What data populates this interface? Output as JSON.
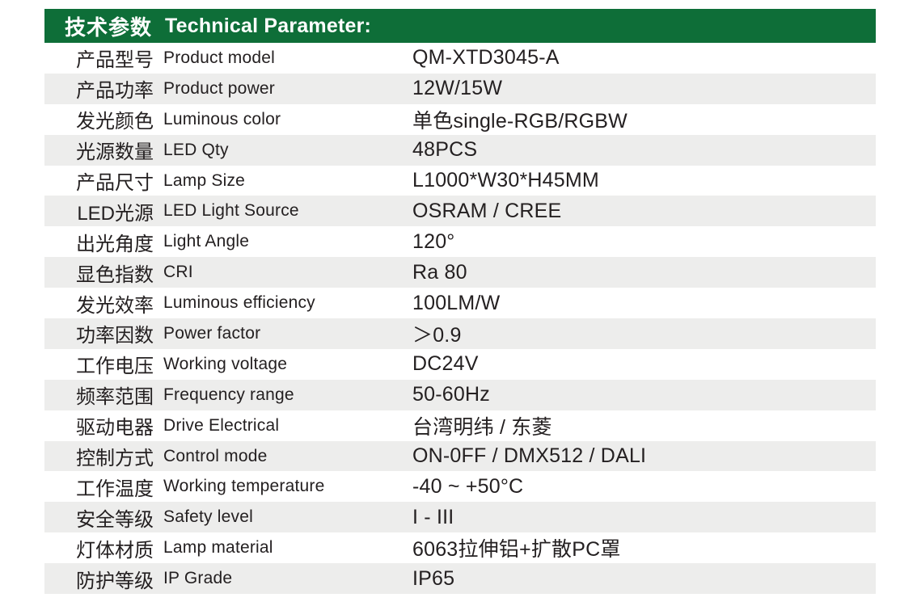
{
  "header": {
    "title_zh": "技术参数",
    "title_en": "Technical Parameter:"
  },
  "colors": {
    "header_bg": "#0e6e38",
    "header_text": "#ffffff",
    "stripe_bg": "#ededec",
    "body_bg": "#ffffff",
    "text": "#242021"
  },
  "table": {
    "columns": [
      "parameter_zh",
      "parameter_en",
      "value"
    ],
    "rows": [
      {
        "zh": "产品型号",
        "en": "Product model",
        "value": "QM-XTD3045-A"
      },
      {
        "zh": "产品功率",
        "en": "Product power",
        "value": "12W/15W"
      },
      {
        "zh": "发光颜色",
        "en": "Luminous color",
        "value": "单色single-RGB/RGBW"
      },
      {
        "zh": "光源数量",
        "en": "LED Qty",
        "value": "48PCS"
      },
      {
        "zh": "产品尺寸",
        "en": "Lamp Size",
        "value": "L1000*W30*H45MM"
      },
      {
        "zh": "LED光源",
        "en": "LED Light Source",
        "value": "OSRAM / CREE"
      },
      {
        "zh": "出光角度",
        "en": "Light Angle",
        "value": "120°"
      },
      {
        "zh": "显色指数",
        "en": "CRI",
        "value": "Ra 80"
      },
      {
        "zh": "发光效率",
        "en": "Luminous efficiency",
        "value": "100LM/W"
      },
      {
        "zh": "功率因数",
        "en": "Power factor",
        "value": "＞0.9"
      },
      {
        "zh": "工作电压",
        "en": "Working voltage",
        "value": "DC24V"
      },
      {
        "zh": "频率范围",
        "en": "Frequency range",
        "value": "50-60Hz"
      },
      {
        "zh": "驱动电器",
        "en": "Drive Electrical",
        "value": "台湾明纬 / 东菱"
      },
      {
        "zh": "控制方式",
        "en": "Control mode",
        "value": "ON-0FF / DMX512 / DALI"
      },
      {
        "zh": "工作温度",
        "en": "Working temperature",
        "value": "-40 ~ +50°C"
      },
      {
        "zh": "安全等级",
        "en": "Safety level",
        "value": "I - III"
      },
      {
        "zh": "灯体材质",
        "en": "Lamp material",
        "value": "6063拉伸铝+扩散PC罩"
      },
      {
        "zh": "防护等级",
        "en": "IP Grade",
        "value": "IP65"
      }
    ]
  }
}
